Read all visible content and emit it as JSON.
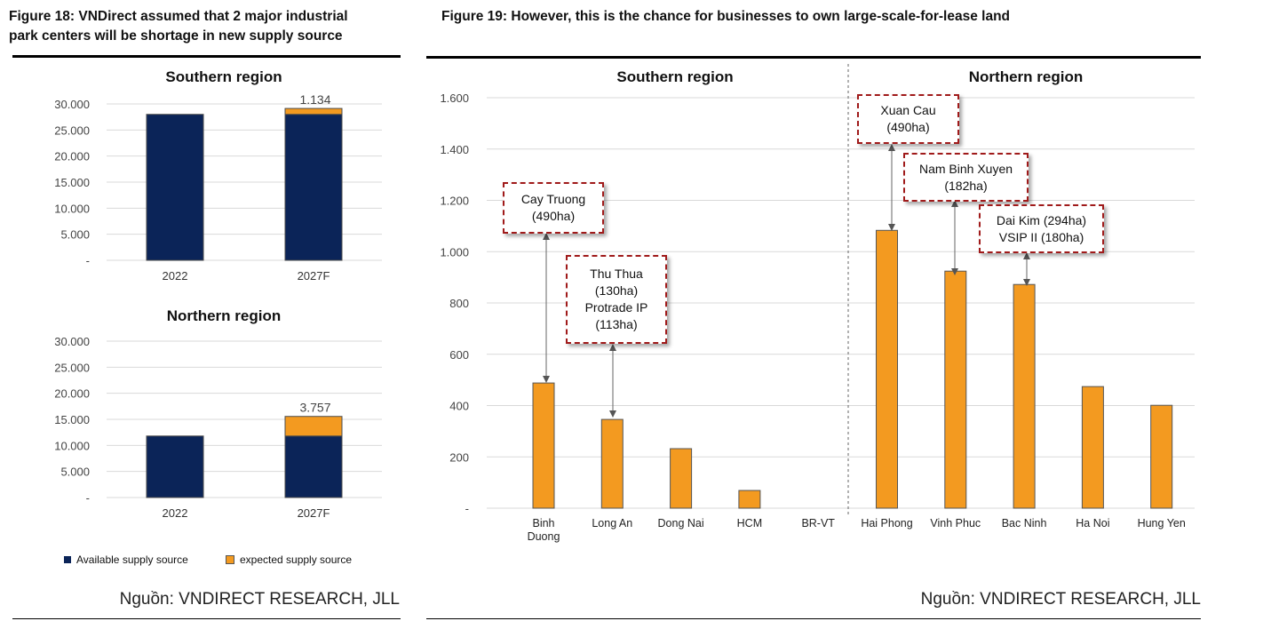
{
  "left": {
    "title_line1": "Figure 18: VNDirect assumed that 2 major industrial",
    "title_line2": "park centers will be shortage in new supply source",
    "source": "Nguồn: VNDIRECT RESEARCH, JLL",
    "legend": [
      {
        "label": "Available supply source",
        "color": "#0b2458"
      },
      {
        "label": "expected supply source",
        "color": "#f39a20"
      }
    ]
  },
  "right": {
    "title": "Figure 19: However, this is the chance for businesses to own large-scale-for-lease land",
    "source": "Nguồn: VNDIRECT RESEARCH, JLL",
    "annotations": [
      {
        "lines": [
          "Cay Truong",
          "(490ha)"
        ]
      },
      {
        "lines": [
          "Thu Thua",
          "(130ha)",
          "Protrade IP",
          "(113ha)"
        ]
      },
      {
        "lines": [
          "Xuan Cau",
          "(490ha)"
        ]
      },
      {
        "lines": [
          "Nam Binh Xuyen",
          "(182ha)"
        ]
      },
      {
        "lines": [
          "Dai Kim (294ha)",
          "VSIP II (180ha)"
        ]
      }
    ]
  },
  "chart_data": [
    {
      "type": "bar",
      "stacked": true,
      "title": "Southern region",
      "categories": [
        "2022",
        "2027F"
      ],
      "series": [
        {
          "name": "Available supply source",
          "values": [
            28000,
            28000
          ]
        },
        {
          "name": "expected supply source",
          "values": [
            0,
            1134
          ]
        }
      ],
      "data_labels": [
        "",
        "1.134"
      ],
      "ylim": [
        0,
        30000
      ],
      "yticks": [
        "-",
        "5.000",
        "10.000",
        "15.000",
        "20.000",
        "25.000",
        "30.000"
      ],
      "grid": true
    },
    {
      "type": "bar",
      "stacked": true,
      "title": "Northern region",
      "categories": [
        "2022",
        "2027F"
      ],
      "series": [
        {
          "name": "Available supply source",
          "values": [
            11800,
            11800
          ]
        },
        {
          "name": "expected supply source",
          "values": [
            0,
            3757
          ]
        }
      ],
      "data_labels": [
        "",
        "3.757"
      ],
      "ylim": [
        0,
        30000
      ],
      "yticks": [
        "-",
        "5.000",
        "10.000",
        "15.000",
        "20.000",
        "25.000",
        "30.000"
      ],
      "grid": true,
      "legend": "bottom"
    },
    {
      "type": "bar",
      "section_titles": [
        "Southern region",
        "Northern region"
      ],
      "categories": [
        "Binh Duong",
        "Long An",
        "Dong Nai",
        "HCM",
        "BR-VT",
        "Hai Phong",
        "Vinh Phuc",
        "Bac Ninh",
        "Ha Noi",
        "Hung Yen"
      ],
      "values": [
        488,
        346,
        232,
        69,
        0,
        1083,
        924,
        872,
        474,
        401
      ],
      "ylim": [
        0,
        1600
      ],
      "yticks": [
        "-",
        "200",
        "400",
        "600",
        "800",
        "1.000",
        "1.200",
        "1.400",
        "1.600"
      ],
      "grid": true,
      "color": "#f39a20"
    }
  ]
}
